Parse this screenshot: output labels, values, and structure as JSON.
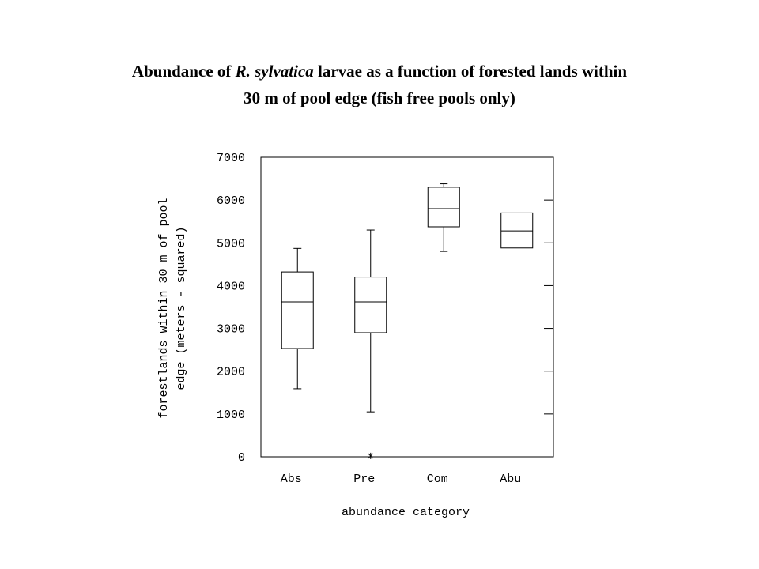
{
  "chart_data": {
    "type": "box",
    "title": {
      "line1": [
        "Abundance of",
        "R. sylvatica",
        "larvae as a function of forested lands within"
      ],
      "line2": "30 m of pool edge (fish free pools only)"
    },
    "ylabel": [
      "forestlands within 30 m of pool",
      "edge (meters - squared)"
    ],
    "xlabel": "abundance category",
    "categories": [
      "Abs",
      "Pre",
      "Com",
      "Abu"
    ],
    "boxes": [
      {
        "min": 1590,
        "q1": 2530,
        "median": 3620,
        "q3": 4320,
        "max": 4870,
        "outliers": []
      },
      {
        "min": 1050,
        "q1": 2900,
        "median": 3620,
        "q3": 4200,
        "max": 5300,
        "outliers": [
          20
        ]
      },
      {
        "min": 4800,
        "q1": 5375,
        "median": 5800,
        "q3": 6300,
        "max": 6380,
        "outliers": []
      },
      {
        "min": null,
        "q1": 4880,
        "median": 5280,
        "q3": 5700,
        "max": null,
        "outliers": []
      }
    ],
    "ylim": [
      0,
      7000
    ],
    "yticks": [
      0,
      1000,
      2000,
      3000,
      4000,
      5000,
      6000,
      7000
    ]
  }
}
